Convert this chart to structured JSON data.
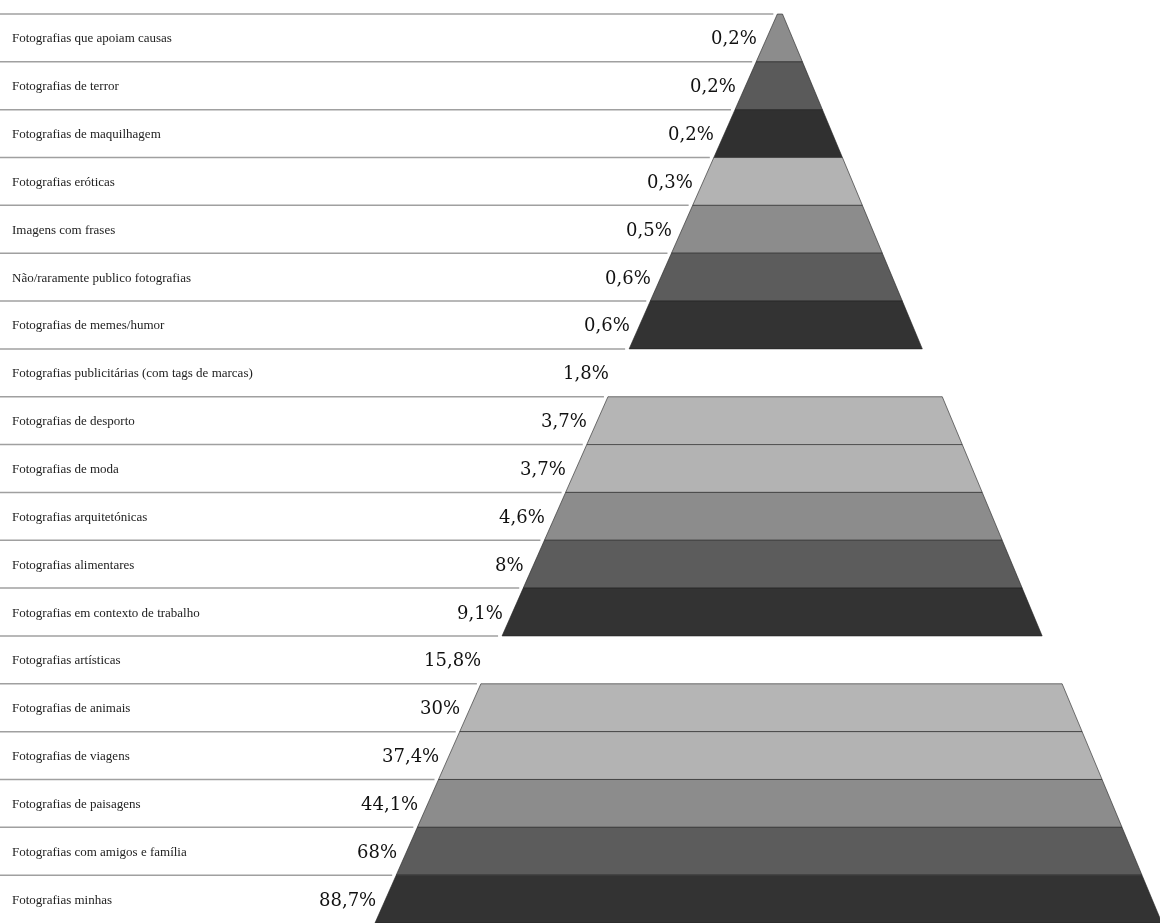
{
  "chart_data": {
    "type": "other",
    "categories": [
      "Fotografias que apoiam causas",
      "Fotografias de terror",
      "Fotografias de maquilhagem",
      "Fotografias eróticas",
      "Imagens com frases",
      "Não/raramente publico fotografias",
      "Fotografias de memes/humor",
      "Fotografias publicitárias (com tags de marcas)",
      "Fotografias de desporto",
      "Fotografias de moda",
      "Fotografias arquitetónicas",
      "Fotografias alimentares",
      "Fotografias em contexto de trabalho",
      "Fotografias artísticas",
      "Fotografias de animais",
      "Fotografias de viagens",
      "Fotografias de paisagens",
      "Fotografias com amigos e família",
      "Fotografias minhas"
    ],
    "values": [
      0.2,
      0.2,
      0.2,
      0.3,
      0.5,
      0.6,
      0.6,
      1.8,
      3.7,
      3.7,
      4.6,
      8,
      9.1,
      15.8,
      30,
      37.4,
      44.1,
      68,
      88.7
    ],
    "value_labels": [
      "0,2%",
      "0,2%",
      "0,2%",
      "0,3%",
      "0,5%",
      "0,6%",
      "0,6%",
      "1,8%",
      "3,7%",
      "3,7%",
      "4,6%",
      "8%",
      "9,1%",
      "15,8%",
      "30%",
      "37,4%",
      "44,1%",
      "68%",
      "88,7%"
    ],
    "colors": [
      "#8c8c8c",
      "#5a5a5a",
      "#303030",
      "#b3b3b3",
      "#8c8c8c",
      "#5c5c5c",
      "#333333",
      null,
      "#b5b5b5",
      "#b3b3b3",
      "#8c8c8c",
      "#5c5c5c",
      "#333333",
      null,
      "#b5b5b5",
      "#b3b3b3",
      "#8c8c8c",
      "#5c5c5c",
      "#333333"
    ]
  }
}
